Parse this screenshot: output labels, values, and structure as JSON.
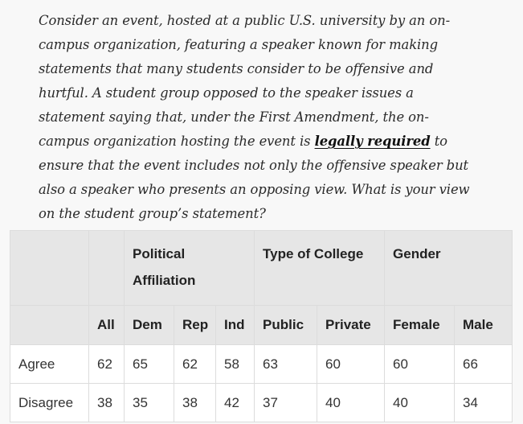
{
  "question": {
    "part1": "Consider an event, hosted at a public U.S. university by an on-campus organization, featuring a speaker known for making statements that many students consider to be offensive and hurtful. A student group opposed to the speaker issues a statement saying that, under the First Amendment, the on-campus organization hosting the event is ",
    "emphasis": "legally required",
    "part2": " to ensure that the event includes not only the offensive speaker but also a speaker who presents an opposing view. What is your view on the student group’s statement?"
  },
  "table": {
    "groups": {
      "political": "Political Affiliation",
      "college": "Type of College",
      "gender": "Gender"
    },
    "columns": {
      "all": "All",
      "dem": "Dem",
      "rep": "Rep",
      "ind": "Ind",
      "public": "Public",
      "private": "Private",
      "female": "Female",
      "male": "Male"
    },
    "rows": [
      {
        "label": "Agree",
        "all": "62",
        "dem": "65",
        "rep": "62",
        "ind": "58",
        "public": "63",
        "private": "60",
        "female": "60",
        "male": "66"
      },
      {
        "label": "Disagree",
        "all": "38",
        "dem": "35",
        "rep": "38",
        "ind": "42",
        "public": "37",
        "private": "40",
        "female": "40",
        "male": "34"
      }
    ]
  }
}
